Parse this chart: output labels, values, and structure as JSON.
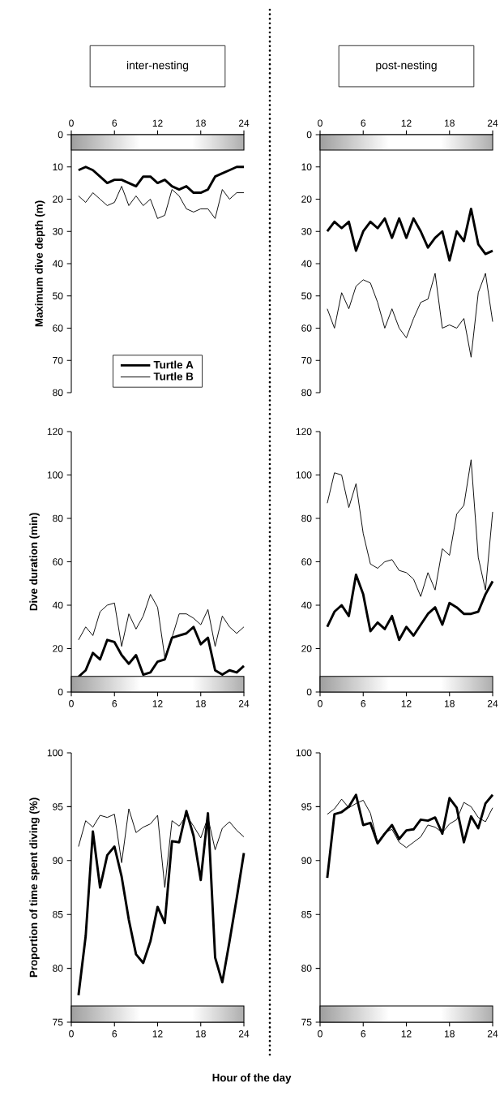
{
  "chart_data": [
    {
      "type": "line",
      "title": "inter-nesting",
      "ylabel": "Maximum dive depth (m)",
      "x": [
        1,
        2,
        3,
        4,
        5,
        6,
        7,
        8,
        9,
        10,
        11,
        12,
        13,
        14,
        15,
        16,
        17,
        18,
        19,
        20,
        21,
        22,
        23,
        24
      ],
      "xlim": [
        0,
        24
      ],
      "xticks": [
        0,
        6,
        12,
        18,
        24
      ],
      "ylim": [
        80,
        0
      ],
      "yticks": [
        0,
        10,
        20,
        30,
        40,
        50,
        60,
        70,
        80
      ],
      "legend": "bottom",
      "series": [
        {
          "name": "Turtle A",
          "color": "#000000",
          "values": [
            11,
            10,
            11,
            13,
            15,
            14,
            14,
            15,
            16,
            13,
            13,
            15,
            14,
            16,
            17,
            16,
            18,
            18,
            17,
            13,
            12,
            11,
            10,
            10
          ]
        },
        {
          "name": "Turtle B",
          "color": "#000000",
          "values": [
            19,
            21,
            18,
            20,
            22,
            21,
            16,
            22,
            19,
            22,
            20,
            26,
            25,
            17,
            19,
            23,
            24,
            23,
            23,
            26,
            17,
            20,
            18,
            18
          ]
        }
      ]
    },
    {
      "type": "line",
      "title": "post-nesting",
      "x": [
        1,
        2,
        3,
        4,
        5,
        6,
        7,
        8,
        9,
        10,
        11,
        12,
        13,
        14,
        15,
        16,
        17,
        18,
        19,
        20,
        21,
        22,
        23,
        24
      ],
      "xlim": [
        0,
        24
      ],
      "xticks": [
        0,
        6,
        12,
        18,
        24
      ],
      "ylim": [
        80,
        0
      ],
      "yticks": [
        0,
        10,
        20,
        30,
        40,
        50,
        60,
        70,
        80
      ],
      "series": [
        {
          "color": "#000000",
          "values": [
            30,
            27,
            29,
            27,
            36,
            30,
            27,
            29,
            26,
            32,
            26,
            32,
            26,
            30,
            35,
            32,
            30,
            39,
            30,
            33,
            23,
            34,
            37,
            36
          ]
        },
        {
          "color": "#000000",
          "values": [
            54,
            60,
            49,
            54,
            47,
            45,
            46,
            52,
            60,
            54,
            60,
            63,
            57,
            52,
            51,
            43,
            60,
            59,
            60,
            57,
            69,
            49,
            43,
            58
          ]
        }
      ]
    },
    {
      "type": "line",
      "ylabel": "Dive duration (min)",
      "x": [
        1,
        2,
        3,
        4,
        5,
        6,
        7,
        8,
        9,
        10,
        11,
        12,
        13,
        14,
        15,
        16,
        17,
        18,
        19,
        20,
        21,
        22,
        23,
        24
      ],
      "xlim": [
        0,
        24
      ],
      "xticks": [
        0,
        6,
        12,
        18,
        24
      ],
      "ylim": [
        0,
        120
      ],
      "yticks": [
        0,
        20,
        40,
        60,
        80,
        100,
        120
      ],
      "series": [
        {
          "color": "#000000",
          "values": [
            7,
            10,
            18,
            15,
            24,
            23,
            17,
            13,
            17,
            8,
            9,
            14,
            15,
            25,
            26,
            27,
            30,
            22,
            25,
            10,
            8,
            10,
            9,
            12
          ]
        },
        {
          "color": "#000000",
          "values": [
            24,
            30,
            26,
            37,
            40,
            41,
            21,
            36,
            29,
            35,
            45,
            39,
            16,
            25,
            36,
            36,
            34,
            31,
            38,
            21,
            35,
            30,
            27,
            30
          ]
        }
      ]
    },
    {
      "type": "line",
      "x": [
        1,
        2,
        3,
        4,
        5,
        6,
        7,
        8,
        9,
        10,
        11,
        12,
        13,
        14,
        15,
        16,
        17,
        18,
        19,
        20,
        21,
        22,
        23,
        24
      ],
      "xlim": [
        0,
        24
      ],
      "xticks": [
        0,
        6,
        12,
        18,
        24
      ],
      "ylim": [
        0,
        120
      ],
      "yticks": [
        0,
        20,
        40,
        60,
        80,
        100,
        120
      ],
      "series": [
        {
          "color": "#000000",
          "values": [
            30,
            37,
            40,
            35,
            54,
            45,
            28,
            32,
            29,
            35,
            24,
            30,
            26,
            31,
            36,
            39,
            31,
            41,
            39,
            36,
            36,
            37,
            45,
            51
          ]
        },
        {
          "color": "#000000",
          "values": [
            87,
            101,
            100,
            85,
            96,
            73,
            59,
            57,
            60,
            61,
            56,
            55,
            52,
            44,
            55,
            47,
            66,
            63,
            82,
            86,
            107,
            62,
            47,
            83
          ]
        }
      ]
    },
    {
      "type": "line",
      "ylabel": "Proportion of time spent diving (%)",
      "xlabel": "Hour of the day",
      "x": [
        1,
        2,
        3,
        4,
        5,
        6,
        7,
        8,
        9,
        10,
        11,
        12,
        13,
        14,
        15,
        16,
        17,
        18,
        19,
        20,
        21,
        22,
        23,
        24
      ],
      "xlim": [
        0,
        24
      ],
      "xticks": [
        0,
        6,
        12,
        18,
        24
      ],
      "ylim": [
        75,
        100
      ],
      "yticks": [
        75,
        80,
        85,
        90,
        95,
        100
      ],
      "series": [
        {
          "color": "#000000",
          "values": [
            77.5,
            83,
            92.7,
            87.5,
            90.5,
            91.3,
            88.5,
            84.5,
            81.3,
            80.5,
            82.5,
            85.7,
            84.2,
            91.8,
            91.7,
            94.6,
            92.3,
            88.2,
            94.4,
            81,
            78.7,
            82.5,
            86.5,
            90.7
          ]
        },
        {
          "color": "#000000",
          "values": [
            91.3,
            93.7,
            93.1,
            94.2,
            94,
            94.3,
            89.8,
            94.8,
            92.6,
            93.1,
            93.4,
            94.2,
            87.5,
            93.7,
            93.2,
            94.2,
            93.2,
            92.1,
            94,
            91,
            93,
            93.6,
            92.8,
            92.2
          ]
        }
      ]
    },
    {
      "type": "line",
      "x": [
        1,
        2,
        3,
        4,
        5,
        6,
        7,
        8,
        9,
        10,
        11,
        12,
        13,
        14,
        15,
        16,
        17,
        18,
        19,
        20,
        21,
        22,
        23,
        24
      ],
      "xlim": [
        0,
        24
      ],
      "xticks": [
        0,
        6,
        12,
        18,
        24
      ],
      "ylim": [
        75,
        100
      ],
      "yticks": [
        75,
        80,
        85,
        90,
        95,
        100
      ],
      "series": [
        {
          "color": "#000000",
          "values": [
            88.4,
            94.3,
            94.5,
            95,
            96.1,
            93.3,
            93.5,
            91.6,
            92.5,
            93.3,
            92,
            92.8,
            92.9,
            93.8,
            93.7,
            94,
            92.5,
            95.8,
            94.9,
            91.7,
            94.1,
            93,
            95.3,
            96.1
          ]
        },
        {
          "color": "#000000",
          "values": [
            94.3,
            94.8,
            95.7,
            94.9,
            95.3,
            95.6,
            94.4,
            91.7,
            92.6,
            92.9,
            91.7,
            91.2,
            91.7,
            92.2,
            93.3,
            93.1,
            92.6,
            93.4,
            93.8,
            95.4,
            95,
            94,
            93.6,
            94.9
          ]
        }
      ]
    }
  ]
}
